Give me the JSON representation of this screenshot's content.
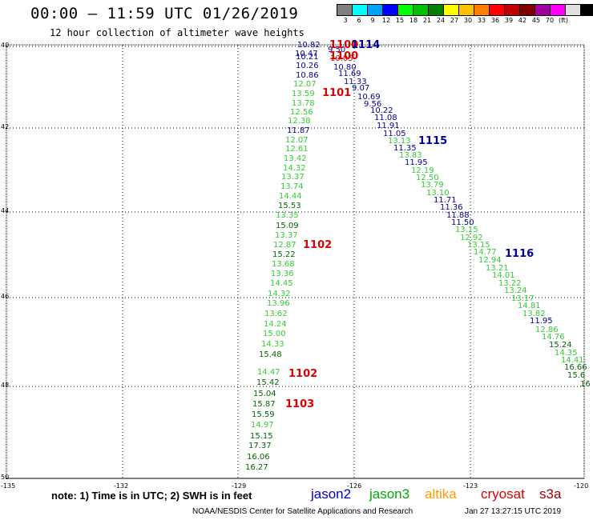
{
  "header": {
    "title": "00:00 – 11:59 UTC 01/26/2019",
    "subtitle": "12 hour collection of altimeter wave heights"
  },
  "color_scale": {
    "colors": [
      "#808080",
      "#00ffff",
      "#00a0ff",
      "#0000ff",
      "#00ff00",
      "#00c000",
      "#008000",
      "#ffff00",
      "#ffc000",
      "#ff8000",
      "#ff0000",
      "#c00000",
      "#800000",
      "#a000a0",
      "#ff00ff",
      "#e0e0e0",
      "#000000"
    ],
    "labels": [
      "3",
      "6",
      "9",
      "12",
      "15",
      "18",
      "21",
      "24",
      "27",
      "30",
      "33",
      "36",
      "39",
      "42",
      "45",
      "70",
      "(ft)"
    ]
  },
  "axes": {
    "lat_labels": [
      "40",
      "42",
      "44",
      "46",
      "48",
      "50"
    ],
    "lon_labels": [
      "-135",
      "-132",
      "-129",
      "-126",
      "-123",
      "-120"
    ]
  },
  "tracks": {
    "jason3_color": "#33cc33",
    "jason3_dark_color": "#006600",
    "jason2_color": "#000099",
    "cryosat_color": "#dd0000",
    "items": [
      {
        "t": "10.82",
        "c": "j2"
      },
      {
        "t": "10.47",
        "c": "j2"
      },
      {
        "t": "10.21",
        "c": "j2"
      },
      {
        "t": "10.26",
        "c": "j2"
      },
      {
        "t": "10.86",
        "c": "j2"
      },
      {
        "t": "12.07",
        "c": "j3"
      },
      {
        "t": "13.59",
        "c": "j3"
      },
      {
        "t": "13.78",
        "c": "j3"
      },
      {
        "t": "12.56",
        "c": "j3"
      },
      {
        "t": "12.38",
        "c": "j3"
      },
      {
        "t": "11.87",
        "c": "j2"
      },
      {
        "t": "12.07",
        "c": "j3"
      },
      {
        "t": "12.61",
        "c": "j3"
      },
      {
        "t": "13.42",
        "c": "j3"
      },
      {
        "t": "14.32",
        "c": "j3"
      },
      {
        "t": "13.37",
        "c": "j3"
      },
      {
        "t": "13.74",
        "c": "j3"
      },
      {
        "t": "14.44",
        "c": "j3"
      },
      {
        "t": "15.53",
        "c": "j3d"
      },
      {
        "t": "13.35",
        "c": "j3"
      },
      {
        "t": "15.09",
        "c": "j3d"
      },
      {
        "t": "13.37",
        "c": "j3"
      },
      {
        "t": "12.87",
        "c": "j3"
      },
      {
        "t": "15.22",
        "c": "j3d"
      },
      {
        "t": "13.68",
        "c": "j3"
      },
      {
        "t": "13.36",
        "c": "j3"
      },
      {
        "t": "14.45",
        "c": "j3"
      },
      {
        "t": "14.32",
        "c": "j3"
      },
      {
        "t": "13.96",
        "c": "j3"
      },
      {
        "t": "13.62",
        "c": "j3"
      },
      {
        "t": "14.24",
        "c": "j3"
      },
      {
        "t": "15.00",
        "c": "j3"
      },
      {
        "t": "14.33",
        "c": "j3"
      },
      {
        "t": "15.48",
        "c": "j3d"
      },
      {
        "t": "14.47",
        "c": "j3"
      },
      {
        "t": "15.42",
        "c": "j3d"
      },
      {
        "t": "15.04",
        "c": "j3d"
      },
      {
        "t": "15.87",
        "c": "j3d"
      },
      {
        "t": "15.59",
        "c": "j3d"
      },
      {
        "t": "14.97",
        "c": "j3"
      },
      {
        "t": "15.15",
        "c": "j3d"
      },
      {
        "t": "17.37",
        "c": "j3d"
      },
      {
        "t": "16.06",
        "c": "j3d"
      },
      {
        "t": "16.27",
        "c": "j3d"
      },
      {
        "t": "9.50",
        "c": "j2"
      },
      {
        "t": "10.05",
        "c": "cr"
      },
      {
        "t": "10.80",
        "c": "j2"
      },
      {
        "t": "11.69",
        "c": "j2"
      },
      {
        "t": "11.33",
        "c": "j2"
      },
      {
        "t": "9.07",
        "c": "j2"
      },
      {
        "t": "10.69",
        "c": "j2"
      },
      {
        "t": "9.56",
        "c": "j2"
      },
      {
        "t": "10.22",
        "c": "j2"
      },
      {
        "t": "11.08",
        "c": "j2"
      },
      {
        "t": "11.91",
        "c": "j2"
      },
      {
        "t": "11.05",
        "c": "j2"
      },
      {
        "t": "13.13",
        "c": "j3"
      },
      {
        "t": "11.35",
        "c": "j2"
      },
      {
        "t": "13.83",
        "c": "j3"
      },
      {
        "t": "11.95",
        "c": "j2"
      },
      {
        "t": "12.19",
        "c": "j3"
      },
      {
        "t": "12.50",
        "c": "j3"
      },
      {
        "t": "13.79",
        "c": "j3"
      },
      {
        "t": "13.10",
        "c": "j3"
      },
      {
        "t": "11.71",
        "c": "j2"
      },
      {
        "t": "11.36",
        "c": "j2"
      },
      {
        "t": "11.88",
        "c": "j2"
      },
      {
        "t": "11.50",
        "c": "j2"
      },
      {
        "t": "13.15",
        "c": "j3"
      },
      {
        "t": "12.92",
        "c": "j3"
      },
      {
        "t": "13.15",
        "c": "j3"
      },
      {
        "t": "14.77",
        "c": "j3"
      },
      {
        "t": "12.94",
        "c": "j3"
      },
      {
        "t": "13.21",
        "c": "j3"
      },
      {
        "t": "14.01",
        "c": "j3"
      },
      {
        "t": "13.22",
        "c": "j3"
      },
      {
        "t": "13.24",
        "c": "j3"
      },
      {
        "t": "13.17",
        "c": "j3"
      },
      {
        "t": "14.81",
        "c": "j3"
      },
      {
        "t": "13.82",
        "c": "j3"
      },
      {
        "t": "11.95",
        "c": "j2"
      },
      {
        "t": "12.86",
        "c": "j3"
      },
      {
        "t": "14.76",
        "c": "j3"
      },
      {
        "t": "15.24",
        "c": "j3d"
      },
      {
        "t": "14.35",
        "c": "j3"
      },
      {
        "t": "14.41",
        "c": "j3"
      },
      {
        "t": "16.66",
        "c": "j3d"
      },
      {
        "t": "15.6",
        "c": "j3d"
      },
      {
        "t": "16",
        "c": "j3d"
      }
    ]
  },
  "pass_labels": [
    {
      "t": "1100",
      "c": "cr"
    },
    {
      "t": "1114",
      "c": "j2"
    },
    {
      "t": "1100",
      "c": "cr"
    },
    {
      "t": "1101",
      "c": "cr"
    },
    {
      "t": "1115",
      "c": "j2"
    },
    {
      "t": "1102",
      "c": "cr"
    },
    {
      "t": "1116",
      "c": "j2"
    },
    {
      "t": "1102",
      "c": "cr"
    },
    {
      "t": "1103",
      "c": "cr"
    }
  ],
  "footer": {
    "note": "note: 1) Time is in UTC; 2) SWH is in feet",
    "legend": [
      {
        "name": "jason2",
        "color": "#0000cc"
      },
      {
        "name": "jason3",
        "color": "#00aa00"
      },
      {
        "name": "altika",
        "color": "#ff9900"
      },
      {
        "name": "cryosat",
        "color": "#dd0000"
      },
      {
        "name": "s3a",
        "color": "#990000"
      }
    ],
    "credit": "NOAA/NESDIS Center for Satellite Applications and Research",
    "timestamp": "Jan 27 13:27:15 UTC 2019"
  }
}
